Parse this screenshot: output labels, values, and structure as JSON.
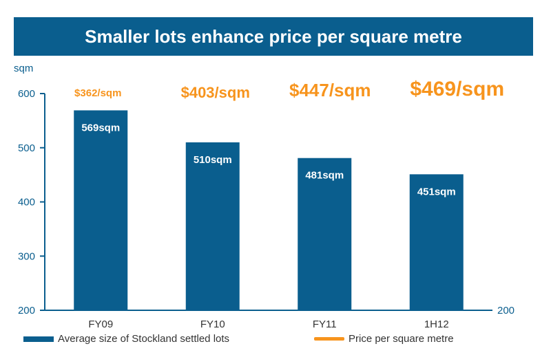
{
  "title": "Smaller lots enhance price per square metre",
  "colors": {
    "bar": "#0a5e8e",
    "price": "#f7941d",
    "axis": "#0a5e8e",
    "title_bg": "#0a5e8e"
  },
  "chart_data": {
    "type": "bar",
    "title": "Smaller lots enhance price per square metre",
    "ylabel": "sqm",
    "ylim": [
      200,
      600
    ],
    "y_ticks": [
      "200",
      "300",
      "400",
      "500",
      "600"
    ],
    "secondary_axis_tick": "200",
    "categories": [
      "FY09",
      "FY10",
      "FY11",
      "1H12"
    ],
    "series": [
      {
        "name": "Average size of Stockland settled lots",
        "values": [
          569,
          510,
          481,
          451
        ],
        "labels": [
          "569sqm",
          "510sqm",
          "481sqm",
          "451sqm"
        ]
      },
      {
        "name": "Price per square metre",
        "values": [
          362,
          403,
          447,
          469
        ],
        "labels": [
          "$362/sqm",
          "$403/sqm",
          "$447/sqm",
          "$469/sqm"
        ]
      }
    ],
    "legend": [
      {
        "label": "Average size of Stockland settled lots",
        "kind": "bar"
      },
      {
        "label": "Price per square metre",
        "kind": "line"
      }
    ],
    "grid": false,
    "legend_position": "bottom"
  }
}
